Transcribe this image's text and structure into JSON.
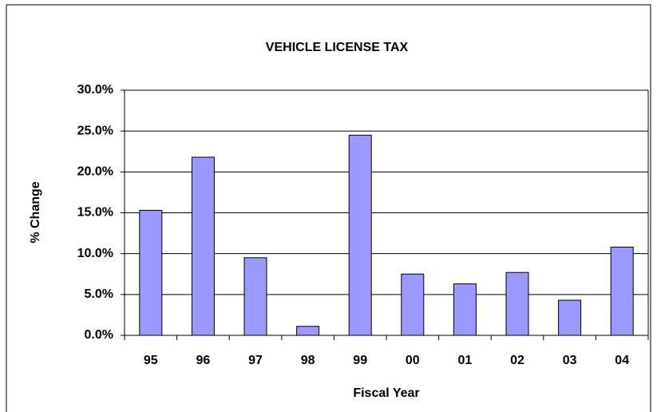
{
  "chart_data": {
    "type": "bar",
    "title": "VEHICLE LICENSE TAX",
    "x_label": "Fiscal Year",
    "y_label": "% Change",
    "categories": [
      "95",
      "96",
      "97",
      "98",
      "99",
      "00",
      "01",
      "02",
      "03",
      "04"
    ],
    "values": [
      15.3,
      21.8,
      9.5,
      1.1,
      24.5,
      7.5,
      6.3,
      7.7,
      4.3,
      10.8
    ],
    "color": "#9999ff",
    "ylim": [
      0,
      30
    ],
    "yticks": [
      {
        "value": 0,
        "label": "0.0%"
      },
      {
        "value": 5,
        "label": "5.0%"
      },
      {
        "value": 10,
        "label": "10.0%"
      },
      {
        "value": 15,
        "label": "15.0%"
      },
      {
        "value": 20,
        "label": "20.0%"
      },
      {
        "value": 25,
        "label": "25.0%"
      },
      {
        "value": 30,
        "label": "30.0%"
      }
    ],
    "grid": true
  }
}
